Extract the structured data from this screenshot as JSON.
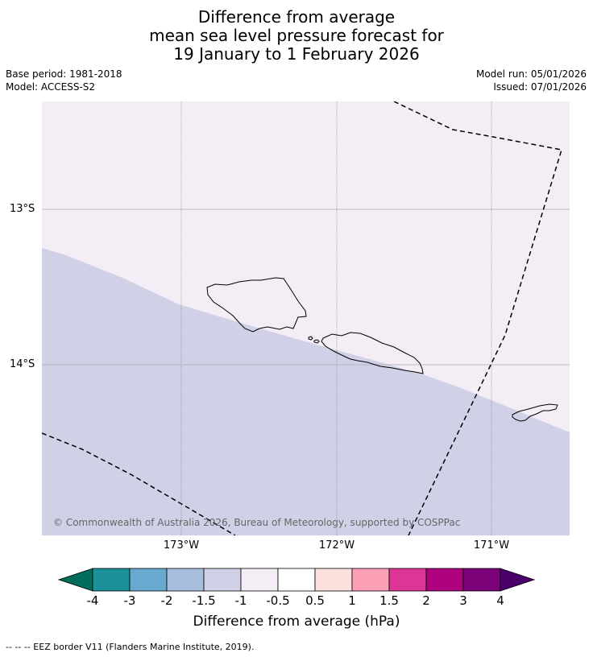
{
  "title": {
    "line1": "Difference from average",
    "line2": "mean sea level pressure forecast for",
    "line3": "19 January to 1 February 2026"
  },
  "meta": {
    "base_period": "Base period: 1981-2018",
    "model": "Model: ACCESS-S2",
    "model_run": "Model run: 05/01/2026",
    "issued": "Issued: 07/01/2026"
  },
  "map": {
    "lat_labels": [
      "13°S",
      "14°S"
    ],
    "lon_labels": [
      "173°W",
      "172°W",
      "171°W"
    ],
    "copyright": "© Commonwealth of Australia 2026, Bureau of Meteorology, supported by COSPPac",
    "colors": {
      "upper_region": "#f4edf5",
      "lower_region": "#d0d1e6",
      "gridline": "#888888",
      "coastline": "#000000",
      "eez": "#000000"
    }
  },
  "colorbar": {
    "ticks": [
      "-4",
      "-3",
      "-2",
      "-1.5",
      "-1",
      "-0.5",
      "0.5",
      "1",
      "1.5",
      "2",
      "3",
      "4"
    ],
    "colors": [
      "#016c59",
      "#1c9099",
      "#67a9cf",
      "#a6bddb",
      "#d0d1e6",
      "#f4edf5",
      "#ffffff",
      "#fde0dd",
      "#fa9fb5",
      "#dd3497",
      "#ae017e",
      "#7a0177",
      "#49006a"
    ],
    "label": "Difference from average (hPa)"
  },
  "footer": {
    "legend": "--  --  -- EEZ border V11 (Flanders Marine Institute, 2019)."
  }
}
